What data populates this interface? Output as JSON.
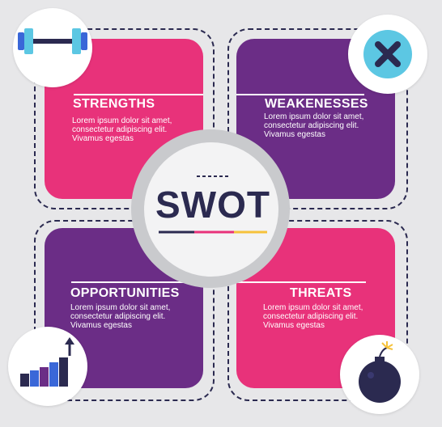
{
  "center": {
    "title": "SWOT"
  },
  "quadrants": [
    {
      "title": "STRENGTHS",
      "text": "Lorem ipsum dolor sit amet,\nconsectetur adipiscing elit.\nVivamus egestas"
    },
    {
      "title": "WEAKENESSES",
      "text": "Lorem ipsum dolor sit amet,\nconsectetur adipiscing elit.\nVivamus egestas"
    },
    {
      "title": "OPPORTUNITIES",
      "text": "Lorem ipsum dolor sit amet,\nconsectetur adipiscing elit.\nVivamus egestas"
    },
    {
      "title": "THREATS",
      "text": "Lorem ipsum dolor sit amet,\nconsectetur adipiscing elit.\nVivamus egestas"
    }
  ],
  "icons": {
    "strengths": "dumbbell-icon",
    "weaknesses": "close-x-icon",
    "opportunities": "growth-bar-chart-icon",
    "threats": "bomb-icon"
  },
  "colors": {
    "pink": "#e8327a",
    "purple": "#6b2d86",
    "navy": "#2b2a50",
    "blue": "#3a67d8",
    "cyan": "#5cc7e3",
    "yellow": "#f6c23b",
    "background": "#e7e7e9"
  }
}
